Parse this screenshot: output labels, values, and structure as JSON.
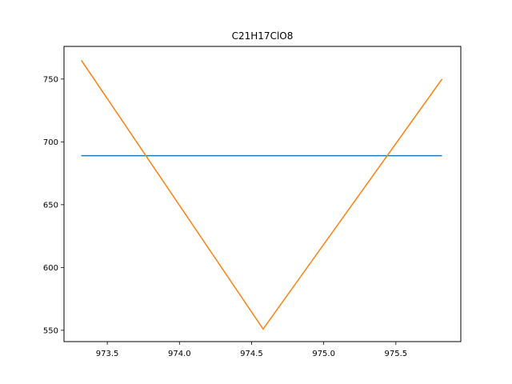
{
  "chart_data": {
    "type": "line",
    "title": "C21H17ClO8",
    "xlabel": "",
    "ylabel": "",
    "xlim": [
      973.2,
      975.95
    ],
    "ylim": [
      541,
      776
    ],
    "grid": false,
    "x_ticks": [
      973.5,
      974.0,
      974.5,
      975.0,
      975.5
    ],
    "x_tick_labels": [
      "973.5",
      "974.0",
      "974.5",
      "975.0",
      "975.5"
    ],
    "y_ticks": [
      550,
      600,
      650,
      700,
      750
    ],
    "y_tick_labels": [
      "550",
      "600",
      "650",
      "700",
      "750"
    ],
    "series": [
      {
        "color": "#1f77b4",
        "x": [
          973.32,
          975.82
        ],
        "y": [
          689,
          689
        ]
      },
      {
        "color": "#ff7f0e",
        "x": [
          973.32,
          974.58,
          975.82
        ],
        "y": [
          765,
          551,
          750
        ]
      }
    ]
  }
}
